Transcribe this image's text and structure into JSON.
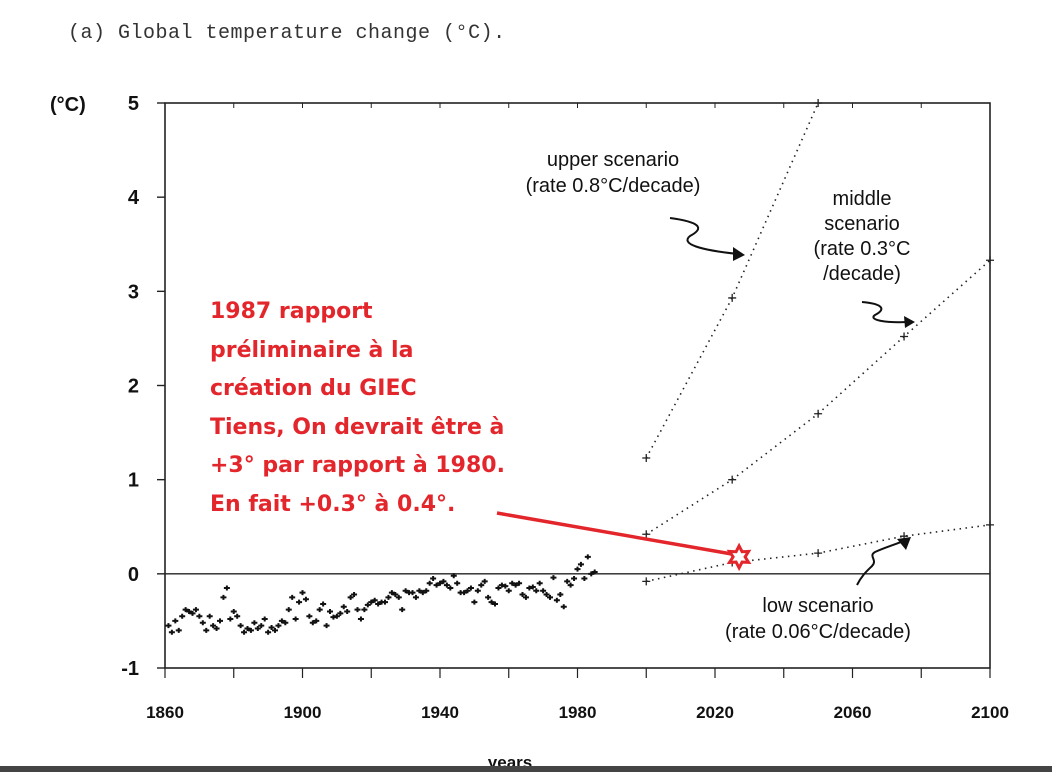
{
  "title": "(a) Global temperature change (°C).",
  "red_note": {
    "lines": [
      "1987  rapport",
      "préliminaire à la",
      "création du GIEC",
      "Tiens, On devrait être à",
      "+3° par rapport à 1980.",
      "En fait +0.3° à 0.4°."
    ],
    "color": "#e3262b",
    "target": {
      "year": 2027,
      "value": 0.18
    }
  },
  "chart_data": {
    "type": "scatter",
    "title": "(a) Global temperature change (°C).",
    "xlabel": "years",
    "ylabel": "(°C)",
    "xlim": [
      1860,
      2100
    ],
    "ylim": [
      -1,
      5
    ],
    "xticks": [
      1860,
      1900,
      1940,
      1980,
      2020,
      2060,
      2100
    ],
    "yticks": [
      -1,
      0,
      1,
      2,
      3,
      4,
      5
    ],
    "historical": {
      "start_year": 1861,
      "values": [
        -0.55,
        -0.62,
        -0.5,
        -0.6,
        -0.45,
        -0.38,
        -0.4,
        -0.42,
        -0.38,
        -0.45,
        -0.52,
        -0.6,
        -0.45,
        -0.55,
        -0.58,
        -0.5,
        -0.25,
        -0.15,
        -0.48,
        -0.4,
        -0.45,
        -0.55,
        -0.62,
        -0.58,
        -0.6,
        -0.52,
        -0.58,
        -0.55,
        -0.48,
        -0.62,
        -0.57,
        -0.6,
        -0.55,
        -0.5,
        -0.52,
        -0.38,
        -0.25,
        -0.48,
        -0.3,
        -0.2,
        -0.27,
        -0.45,
        -0.52,
        -0.5,
        -0.38,
        -0.32,
        -0.55,
        -0.4,
        -0.46,
        -0.45,
        -0.42,
        -0.35,
        -0.4,
        -0.25,
        -0.22,
        -0.38,
        -0.48,
        -0.38,
        -0.33,
        -0.3,
        -0.28,
        -0.32,
        -0.3,
        -0.3,
        -0.25,
        -0.2,
        -0.22,
        -0.25,
        -0.38,
        -0.18,
        -0.2,
        -0.2,
        -0.25,
        -0.18,
        -0.2,
        -0.18,
        -0.1,
        -0.05,
        -0.12,
        -0.1,
        -0.08,
        -0.12,
        -0.15,
        -0.02,
        -0.1,
        -0.2,
        -0.2,
        -0.18,
        -0.15,
        -0.3,
        -0.18,
        -0.12,
        -0.08,
        -0.25,
        -0.3,
        -0.32,
        -0.15,
        -0.12,
        -0.13,
        -0.18,
        -0.1,
        -0.12,
        -0.1,
        -0.22,
        -0.25,
        -0.15,
        -0.14,
        -0.18,
        -0.1,
        -0.18,
        -0.22,
        -0.25,
        -0.04,
        -0.28,
        -0.22,
        -0.35,
        -0.08,
        -0.12,
        -0.05,
        0.05,
        0.1,
        -0.05,
        0.18,
        0.0,
        0.02
      ]
    },
    "series": [
      {
        "name": "upper scenario",
        "label": [
          "upper scenario",
          "(rate 0.8°C/decade)"
        ],
        "x": [
          2000,
          2025,
          2050
        ],
        "y": [
          1.23,
          2.93,
          5.0
        ]
      },
      {
        "name": "middle scenario",
        "label": [
          "middle",
          "scenario",
          "(rate 0.3°C",
          "/decade)"
        ],
        "x": [
          2000,
          2025,
          2050,
          2075,
          2100
        ],
        "y": [
          0.42,
          1.0,
          1.7,
          2.52,
          3.33
        ]
      },
      {
        "name": "low scenario",
        "label": [
          "low scenario",
          "(rate 0.06°C/decade)"
        ],
        "x": [
          2000,
          2025,
          2050,
          2075,
          2100
        ],
        "y": [
          -0.08,
          0.12,
          0.22,
          0.4,
          0.52
        ]
      }
    ]
  }
}
